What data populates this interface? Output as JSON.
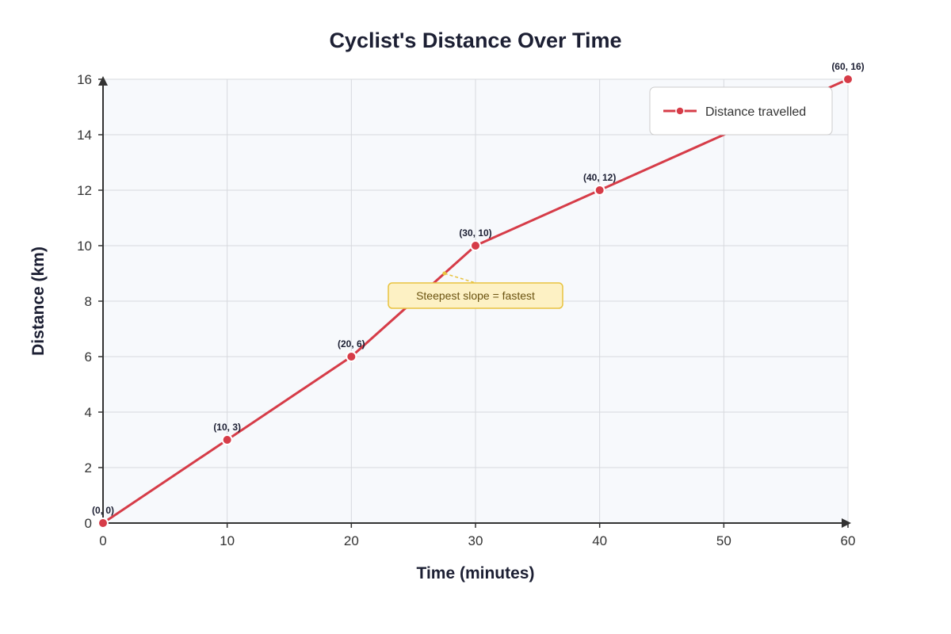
{
  "chart_data": {
    "type": "line",
    "title": "Cyclist's Distance Over Time",
    "xlabel": "Time (minutes)",
    "ylabel": "Distance (km)",
    "xlim": [
      0,
      60
    ],
    "ylim": [
      0,
      16
    ],
    "x_ticks": [
      0,
      10,
      20,
      30,
      40,
      50,
      60
    ],
    "y_ticks": [
      0,
      2,
      4,
      6,
      8,
      10,
      12,
      14,
      16
    ],
    "grid": true,
    "legend_position": "top-right",
    "series": [
      {
        "name": "Distance travelled",
        "color": "#d63c48",
        "x": [
          0,
          10,
          20,
          30,
          40,
          60
        ],
        "y": [
          0,
          3,
          6,
          10,
          12,
          16
        ],
        "point_labels": [
          "(0, 0)",
          "(10, 3)",
          "(20, 6)",
          "(30, 10)",
          "(40, 12)",
          "(60, 16)"
        ]
      }
    ],
    "annotation": {
      "text": "Steepest slope = fastest",
      "anchor_x": 27.5,
      "anchor_y": 9,
      "box_center_x": 30,
      "box_center_y": 8.2,
      "fill": "#fdf1c4",
      "border": "#e8c340"
    },
    "colors": {
      "plot_background": "#f7f9fc",
      "grid": "#d7d9de",
      "axis": "#333333"
    }
  }
}
